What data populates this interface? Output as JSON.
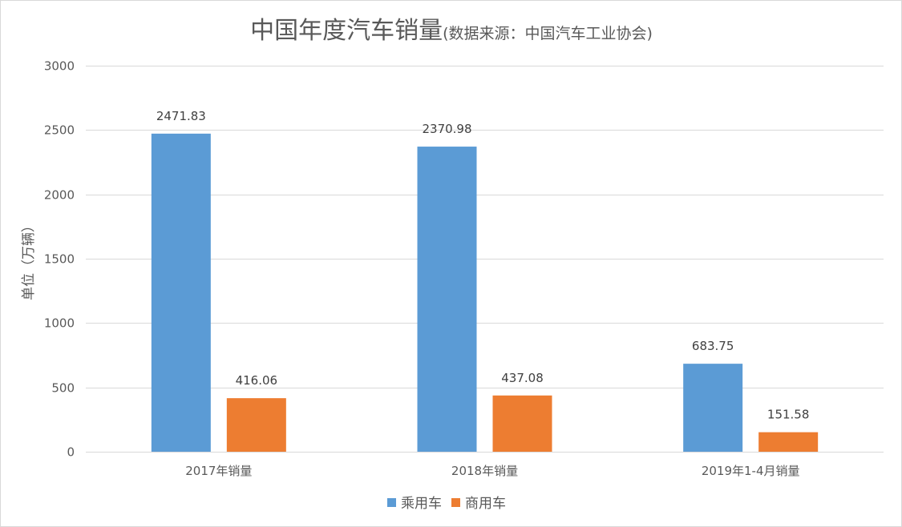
{
  "chart_data": {
    "type": "bar",
    "title": "中国年度汽车销量",
    "subtitle": "(数据来源：中国汽车工业协会)",
    "xlabel": "",
    "ylabel": "单位（万辆）",
    "ylim": [
      0,
      3000
    ],
    "yticks": [
      0,
      500,
      1000,
      1500,
      2000,
      2500,
      3000
    ],
    "categories": [
      "2017年销量",
      "2018年销量",
      "2019年1-4月销量"
    ],
    "series": [
      {
        "name": "乘用车",
        "color": "#5b9bd5",
        "values": [
          2471.83,
          2370.98,
          683.75
        ]
      },
      {
        "name": "商用车",
        "color": "#ed7d31",
        "values": [
          416.06,
          437.08,
          151.58
        ]
      }
    ],
    "value_labels": [
      [
        "2471.83",
        "2370.98",
        "683.75"
      ],
      [
        "416.06",
        "437.08",
        "151.58"
      ]
    ],
    "grid": true,
    "legend_position": "bottom"
  }
}
